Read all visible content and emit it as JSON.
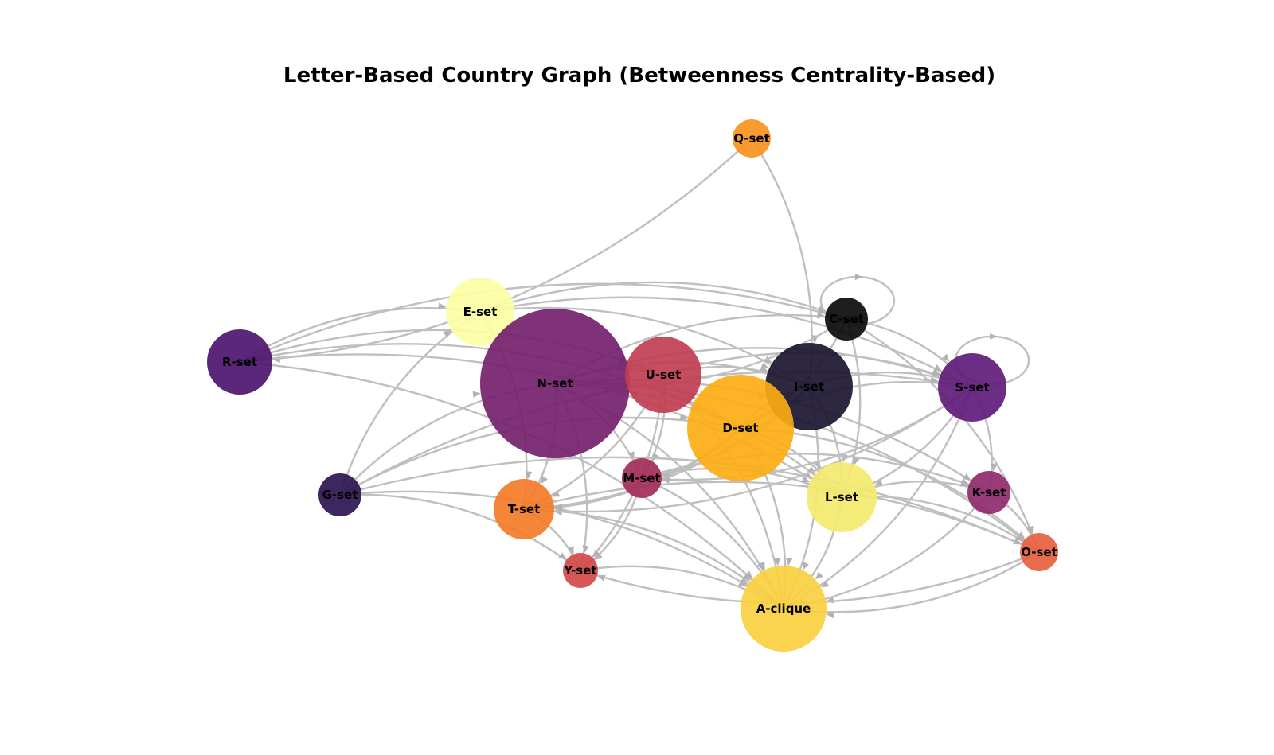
{
  "title": "Letter-Based Country Graph (Betweenness Centrality-Based)",
  "nodes": [
    {
      "id": "Q-set",
      "label": "Q-set",
      "color": "#f8941d"
    },
    {
      "id": "E-set",
      "label": "E-set",
      "color": "#fcfea4"
    },
    {
      "id": "C-set",
      "label": "C-set",
      "color": "#0b0b0b"
    },
    {
      "id": "R-set",
      "label": "R-set",
      "color": "#4c1570"
    },
    {
      "id": "N-set",
      "label": "N-set",
      "color": "#74216c"
    },
    {
      "id": "U-set",
      "label": "U-set",
      "color": "#c13d52"
    },
    {
      "id": "I-set",
      "label": "I-set",
      "color": "#1b1530"
    },
    {
      "id": "S-set",
      "label": "S-set",
      "color": "#5f1c7a"
    },
    {
      "id": "D-set",
      "label": "D-set",
      "color": "#fcac13"
    },
    {
      "id": "M-set",
      "label": "M-set",
      "color": "#a32c5b"
    },
    {
      "id": "G-set",
      "label": "G-set",
      "color": "#2c1550"
    },
    {
      "id": "T-set",
      "label": "T-set",
      "color": "#f47c28"
    },
    {
      "id": "L-set",
      "label": "L-set",
      "color": "#f3e96e"
    },
    {
      "id": "K-set",
      "label": "K-set",
      "color": "#8f2a6d"
    },
    {
      "id": "O-set",
      "label": "O-set",
      "color": "#e65f3e"
    },
    {
      "id": "Y-set",
      "label": "Y-set",
      "color": "#d44949"
    },
    {
      "id": "A-clique",
      "label": "A-clique",
      "color": "#fad040"
    }
  ],
  "edges": [
    [
      "Q-set",
      "R-set"
    ],
    [
      "Q-set",
      "I-set"
    ],
    [
      "E-set",
      "C-set"
    ],
    [
      "E-set",
      "I-set"
    ],
    [
      "E-set",
      "T-set"
    ],
    [
      "E-set",
      "S-set"
    ],
    [
      "R-set",
      "E-set"
    ],
    [
      "R-set",
      "U-set"
    ],
    [
      "R-set",
      "D-set"
    ],
    [
      "R-set",
      "A-clique"
    ],
    [
      "R-set",
      "L-set"
    ],
    [
      "R-set",
      "C-set"
    ],
    [
      "G-set",
      "E-set"
    ],
    [
      "G-set",
      "N-set"
    ],
    [
      "G-set",
      "S-set"
    ],
    [
      "G-set",
      "A-clique"
    ],
    [
      "G-set",
      "Y-set"
    ],
    [
      "G-set",
      "D-set"
    ],
    [
      "N-set",
      "U-set"
    ],
    [
      "N-set",
      "I-set"
    ],
    [
      "N-set",
      "D-set"
    ],
    [
      "N-set",
      "S-set"
    ],
    [
      "N-set",
      "K-set"
    ],
    [
      "N-set",
      "O-set"
    ],
    [
      "N-set",
      "T-set"
    ],
    [
      "N-set",
      "Y-set"
    ],
    [
      "N-set",
      "A-clique"
    ],
    [
      "N-set",
      "L-set"
    ],
    [
      "N-set",
      "M-set"
    ],
    [
      "N-set",
      "C-set"
    ],
    [
      "U-set",
      "I-set"
    ],
    [
      "U-set",
      "T-set"
    ],
    [
      "U-set",
      "Y-set"
    ],
    [
      "U-set",
      "M-set"
    ],
    [
      "U-set",
      "A-clique"
    ],
    [
      "U-set",
      "S-set"
    ],
    [
      "D-set",
      "I-set"
    ],
    [
      "D-set",
      "S-set"
    ],
    [
      "D-set",
      "M-set"
    ],
    [
      "D-set",
      "T-set"
    ],
    [
      "D-set",
      "A-clique"
    ],
    [
      "D-set",
      "L-set"
    ],
    [
      "D-set",
      "O-set"
    ],
    [
      "C-set",
      "S-set"
    ],
    [
      "C-set",
      "D-set"
    ],
    [
      "C-set",
      "L-set"
    ],
    [
      "C-set",
      "O-set"
    ],
    [
      "C-set",
      "N-set"
    ],
    [
      "I-set",
      "S-set"
    ],
    [
      "I-set",
      "L-set"
    ],
    [
      "I-set",
      "A-clique"
    ],
    [
      "I-set",
      "M-set"
    ],
    [
      "I-set",
      "T-set"
    ],
    [
      "S-set",
      "K-set"
    ],
    [
      "S-set",
      "L-set"
    ],
    [
      "S-set",
      "A-clique"
    ],
    [
      "S-set",
      "T-set"
    ],
    [
      "S-set",
      "M-set"
    ],
    [
      "M-set",
      "L-set"
    ],
    [
      "M-set",
      "Y-set"
    ],
    [
      "M-set",
      "A-clique"
    ],
    [
      "M-set",
      "K-set"
    ],
    [
      "T-set",
      "A-clique"
    ],
    [
      "T-set",
      "Y-set"
    ],
    [
      "T-set",
      "O-set"
    ],
    [
      "L-set",
      "A-clique"
    ],
    [
      "L-set",
      "K-set"
    ],
    [
      "L-set",
      "O-set"
    ],
    [
      "K-set",
      "A-clique"
    ],
    [
      "K-set",
      "O-set"
    ],
    [
      "O-set",
      "A-clique"
    ],
    [
      "O-set",
      "Y-set"
    ],
    [
      "Y-set",
      "A-clique"
    ],
    [
      "G-set",
      "O-set"
    ]
  ],
  "self_loops": [
    "C-set",
    "S-set"
  ]
}
